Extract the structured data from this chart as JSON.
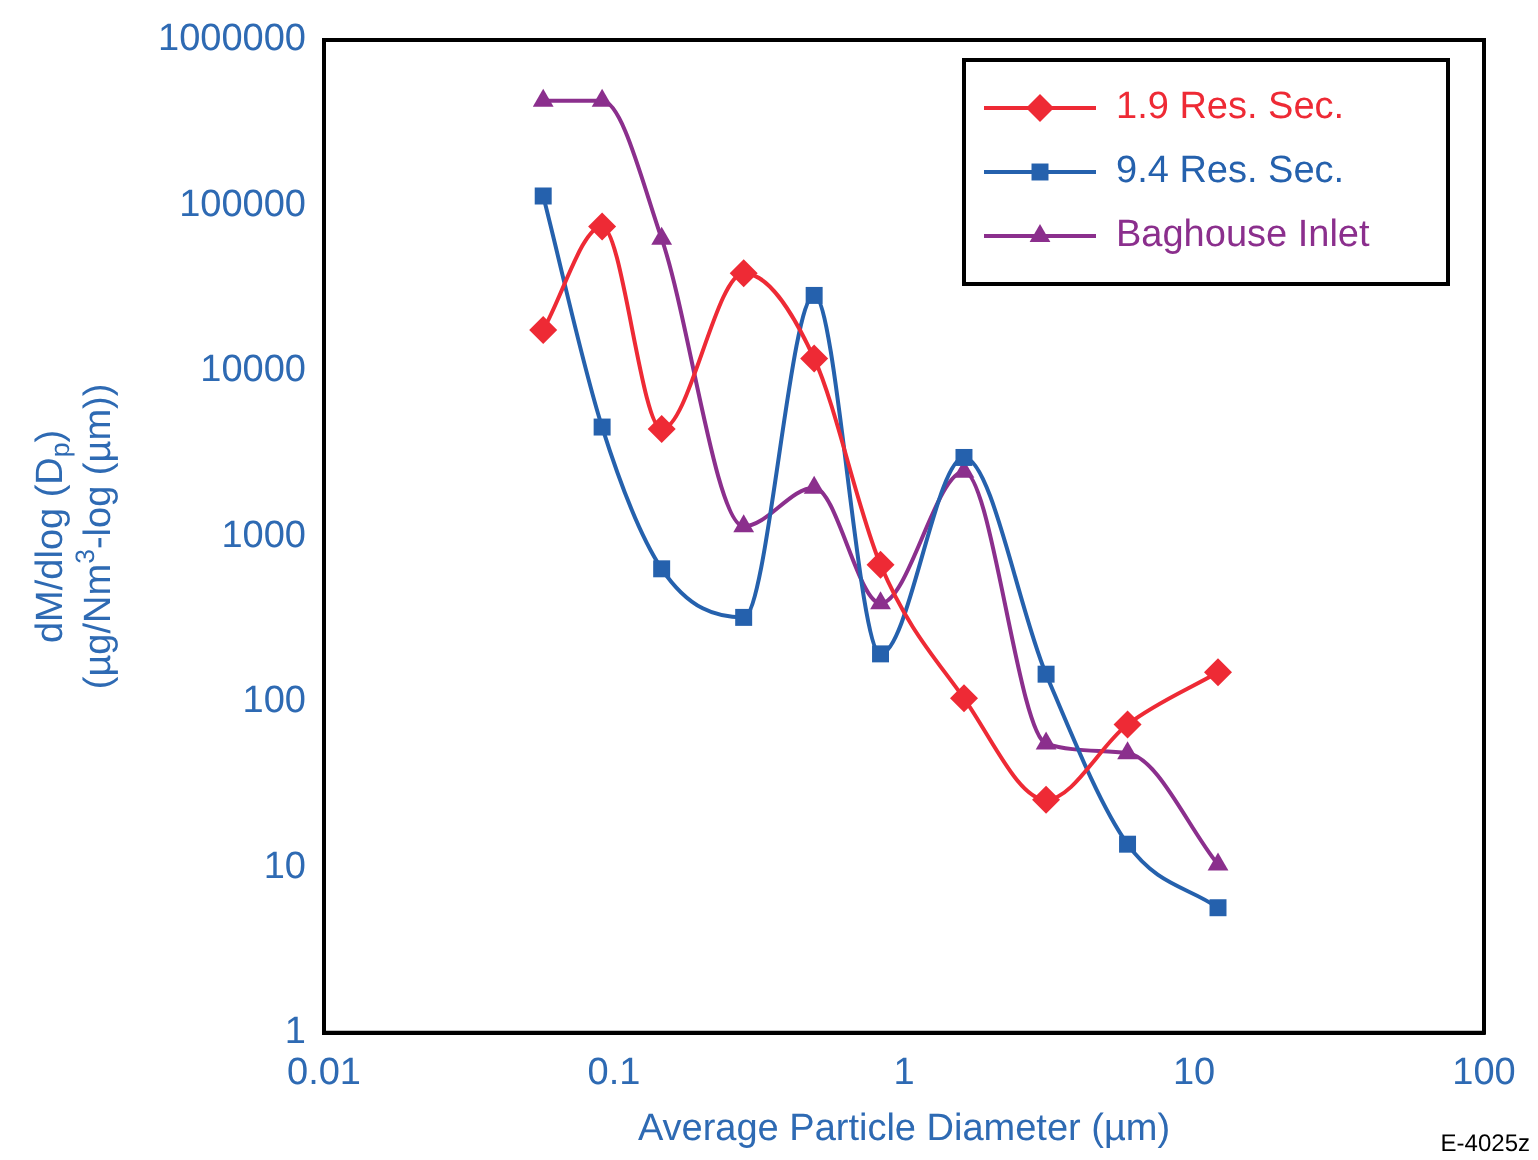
{
  "chart_data": {
    "type": "line",
    "xlabel": "Average Particle Diameter (µm)",
    "ylabel": "dM/dlog (D$_{p}$)\n(µg/Nm$^{3}$-log (µm))",
    "log": "xy",
    "xlim": [
      0.01,
      100
    ],
    "xticks": [
      0.01,
      0.1,
      1,
      10,
      100
    ],
    "ylim": [
      1,
      1000000
    ],
    "yticks": [
      1,
      10,
      100,
      1000,
      10000,
      100000,
      1000000
    ],
    "grid": false,
    "legend": "top right",
    "line_style": "solid",
    "annotations": [
      "E-4025z"
    ],
    "series": [
      {
        "name": "1.9 Res. Sec.",
        "color": "#ee2a35",
        "marker": "diamond",
        "x": [
          0.057,
          0.091,
          0.146,
          0.28,
          0.49,
          0.83,
          1.61,
          3.09,
          5.9,
          12.1
        ],
        "values": [
          17700,
          74700,
          4450,
          39000,
          11900,
          674,
          105,
          25.6,
          73,
          151
        ]
      },
      {
        "name": "9.4 Res. Sec.",
        "color": "#2561ad",
        "marker": "square",
        "x": [
          0.057,
          0.091,
          0.146,
          0.28,
          0.49,
          0.83,
          1.61,
          3.09,
          5.9,
          12.1
        ],
        "values": [
          114000,
          4580,
          637,
          324,
          28600,
          195,
          3000,
          147,
          13.8,
          5.7
        ]
      },
      {
        "name": "Baghouse Inlet",
        "color": "#8b2f8d",
        "marker": "triangle",
        "x": [
          0.057,
          0.091,
          0.146,
          0.28,
          0.49,
          0.83,
          1.61,
          3.09,
          5.9,
          12.1
        ],
        "values": [
          429000,
          429000,
          63000,
          1150,
          1970,
          394,
          2460,
          56,
          49,
          10.4
        ]
      }
    ]
  }
}
